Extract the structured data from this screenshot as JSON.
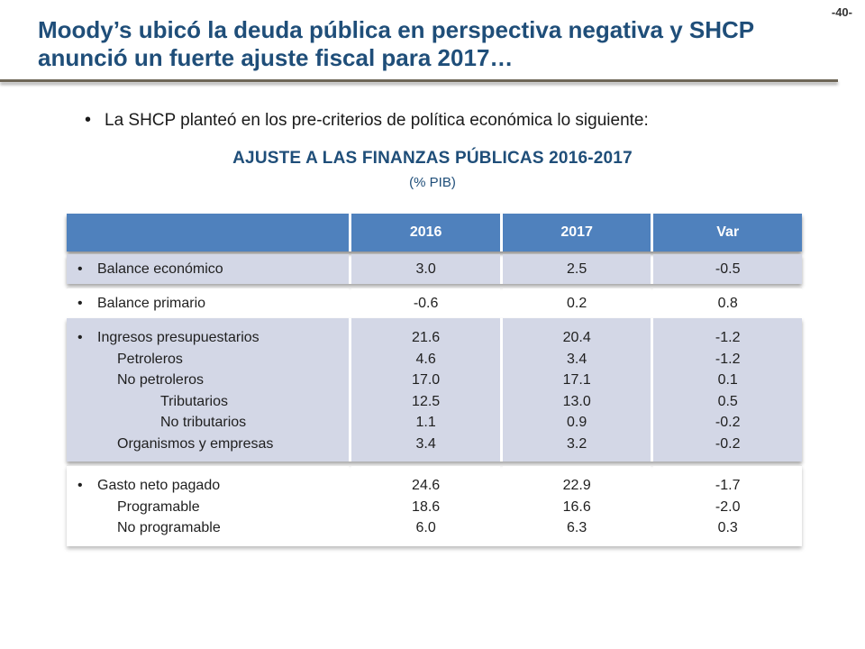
{
  "page_number": "-40-",
  "title": "Moody’s ubicó la deuda pública en perspectiva negativa y SHCP anunció un fuerte ajuste fiscal para 2017…",
  "bullet": "La SHCP planteó en los pre-criterios de política económica lo siguiente:",
  "table": {
    "title": "AJUSTE A LAS FINANZAS PÚBLICAS 2016-2017",
    "unit": "(% PIB)",
    "headers": [
      "",
      "2016",
      "2017",
      "Var"
    ],
    "groups": [
      {
        "labels": [
          "Balance económico"
        ],
        "y2016": [
          "3.0"
        ],
        "y2017": [
          "2.5"
        ],
        "var": [
          "-0.5"
        ]
      },
      {
        "labels": [
          "Balance primario"
        ],
        "y2016": [
          "-0.6"
        ],
        "y2017": [
          "0.2"
        ],
        "var": [
          "0.8"
        ]
      },
      {
        "labels": [
          "Ingresos presupuestarios",
          "Petroleros",
          "No petroleros",
          "Tributarios",
          "No tributarios",
          "Organismos y empresas"
        ],
        "y2016": [
          "21.6",
          "4.6",
          "17.0",
          "12.5",
          "1.1",
          "3.4"
        ],
        "y2017": [
          "20.4",
          "3.4",
          "17.1",
          "13.0",
          "0.9",
          "3.2"
        ],
        "var": [
          "-1.2",
          "-1.2",
          "0.1",
          "0.5",
          "-0.2",
          "-0.2"
        ]
      },
      {
        "labels": [
          "Gasto neto pagado",
          "Programable",
          "No programable"
        ],
        "y2016": [
          "24.6",
          "18.6",
          "6.0"
        ],
        "y2017": [
          "22.9",
          "16.6",
          "6.3"
        ],
        "var": [
          "-1.7",
          "-2.0",
          "0.3"
        ]
      }
    ]
  }
}
